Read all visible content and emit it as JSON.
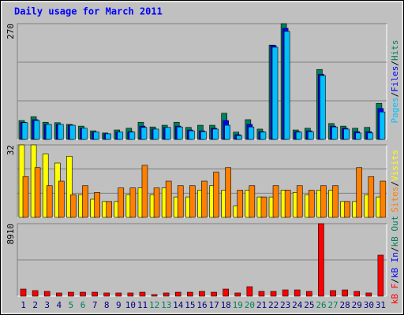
{
  "chart_data": {
    "type": "bar",
    "title": "Daily usage for March 2011",
    "categories": [
      "1",
      "2",
      "3",
      "4",
      "5",
      "6",
      "7",
      "8",
      "9",
      "10",
      "11",
      "12",
      "13",
      "14",
      "15",
      "16",
      "17",
      "18",
      "19",
      "20",
      "21",
      "22",
      "23",
      "24",
      "25",
      "26",
      "27",
      "28",
      "29",
      "30",
      "31"
    ],
    "category_colors": [
      "#000080",
      "#000080",
      "#000080",
      "#000080",
      "#00805c",
      "#00805c",
      "#000080",
      "#000080",
      "#000080",
      "#000080",
      "#000080",
      "#00805c",
      "#00805c",
      "#000080",
      "#000080",
      "#000080",
      "#000080",
      "#000080",
      "#00805c",
      "#00805c",
      "#000080",
      "#000080",
      "#000080",
      "#000080",
      "#000080",
      "#00805c",
      "#00805c",
      "#000080",
      "#000080",
      "#000080",
      "#000080"
    ],
    "legend_separator": "/",
    "panels": [
      {
        "ylim": [
          0,
          270
        ],
        "yticks": [
          270
        ],
        "grid_divisions": 3,
        "legend_reverse": true,
        "series": [
          {
            "name": "Hits",
            "color": "#00805c",
            "values": [
              44,
              53,
              40,
              39,
              35,
              31,
              20,
              15,
              22,
              26,
              40,
              29,
              33,
              40,
              28,
              33,
              33,
              61,
              17,
              46,
              24,
              220,
              270,
              22,
              26,
              163,
              37,
              31,
              26,
              28,
              84
            ]
          },
          {
            "name": "Files",
            "color": "#0000ff",
            "values": [
              40,
              46,
              35,
              35,
              33,
              26,
              17,
              13,
              17,
              18,
              31,
              24,
              28,
              31,
              22,
              20,
              26,
              44,
              11,
              35,
              18,
              219,
              259,
              18,
              20,
              152,
              31,
              26,
              18,
              18,
              72
            ]
          },
          {
            "name": "Pages",
            "color": "#00c0ff",
            "values": [
              39,
              44,
              35,
              35,
              33,
              26,
              17,
              13,
              17,
              17,
              28,
              24,
              28,
              29,
              20,
              18,
              24,
              33,
              9,
              29,
              17,
              215,
              252,
              17,
              18,
              149,
              29,
              24,
              15,
              15,
              64
            ]
          }
        ]
      },
      {
        "ylim": [
          0,
          32
        ],
        "yticks": [
          32
        ],
        "grid_divisions": 3,
        "legend_reverse": true,
        "series": [
          {
            "name": "Visits",
            "color": "#ffff00",
            "values": [
              32,
              32,
              28,
              24,
              27,
              10,
              8,
              7,
              7,
              10,
              13,
              10,
              13,
              9,
              9,
              12,
              14,
              12,
              5,
              12,
              9,
              9,
              12,
              11,
              10,
              12,
              12,
              7,
              7,
              10,
              9
            ]
          },
          {
            "name": "Sites",
            "color": "#ff8000",
            "values": [
              18,
              22,
              14,
              16,
              10,
              14,
              11,
              7,
              13,
              13,
              23,
              13,
              16,
              14,
              14,
              16,
              20,
              22,
              12,
              14,
              9,
              14,
              12,
              14,
              12,
              14,
              14,
              7,
              22,
              18,
              16
            ]
          }
        ]
      },
      {
        "ylim": [
          0,
          8910
        ],
        "yticks": [
          8910
        ],
        "grid_divisions": 2,
        "legend_reverse": false,
        "series": [
          {
            "name": "kB F",
            "color": "#ff0000",
            "values": [
              870,
              680,
              580,
              390,
              480,
              480,
              480,
              390,
              390,
              390,
              480,
              190,
              390,
              480,
              480,
              580,
              480,
              870,
              390,
              1160,
              580,
              580,
              770,
              770,
              580,
              8910,
              680,
              770,
              580,
              390,
              5040
            ]
          }
        ],
        "legend_extra": [
          {
            "name": "kB In",
            "color": "#0000ff"
          },
          {
            "name": "kB Out",
            "color": "#00805c"
          }
        ]
      }
    ]
  }
}
